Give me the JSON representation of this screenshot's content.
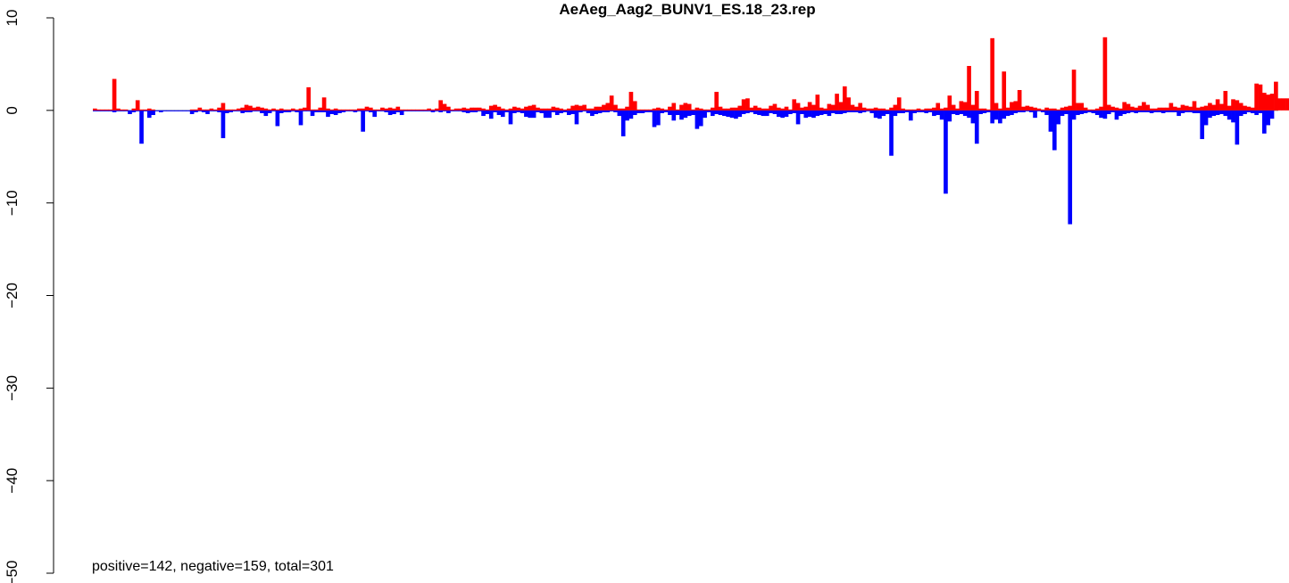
{
  "chart_data": {
    "type": "bar",
    "title": "AeAeg_Aag2_BUNV1_ES.18_23.rep",
    "xlabel": "",
    "ylabel": "",
    "ylim": [
      -50,
      10
    ],
    "y_ticks": [
      10,
      0,
      -10,
      -20,
      -30,
      -40,
      -50
    ],
    "y_tick_labels": [
      "10",
      "0",
      "−10",
      "−20",
      "−30",
      "−40",
      "−50"
    ],
    "grid": false,
    "legend": "none",
    "annotation": "positive=142, negative=159, total=301",
    "n_positions": 301,
    "series": [
      {
        "name": "positive",
        "color": "#ff0000",
        "values": [
          0.2,
          0.1,
          0.1,
          0.1,
          0.1,
          3.4,
          0.2,
          0.1,
          0.1,
          0,
          0.2,
          1.1,
          0.1,
          0.1,
          0.2,
          0.1,
          0,
          0,
          0,
          0,
          0,
          0,
          0,
          0,
          0,
          0.1,
          0.1,
          0.3,
          0.1,
          0.1,
          0.2,
          0.1,
          0.3,
          0.8,
          0.1,
          0.1,
          0.1,
          0.2,
          0.3,
          0.6,
          0.5,
          0.3,
          0.4,
          0.3,
          0.2,
          0.1,
          0.2,
          0.1,
          0.2,
          0.1,
          0.1,
          0.2,
          0.1,
          0.2,
          0.3,
          2.5,
          0.1,
          0.1,
          0.3,
          1.4,
          0.2,
          0.1,
          0.2,
          0.1,
          0.1,
          0.1,
          0.1,
          0.1,
          0.2,
          0.2,
          0.4,
          0.3,
          0.1,
          0.1,
          0.3,
          0.2,
          0.3,
          0.2,
          0.4,
          0.1,
          0.1,
          0.1,
          0.1,
          0.1,
          0.1,
          0.1,
          0.2,
          0.1,
          0.2,
          1.1,
          0.7,
          0.4,
          0.1,
          0.2,
          0.2,
          0.3,
          0.2,
          0.3,
          0.3,
          0.3,
          0.2,
          0.1,
          0.5,
          0.6,
          0.4,
          0.2,
          0.1,
          0.2,
          0.4,
          0.3,
          0.2,
          0.4,
          0.5,
          0.6,
          0.3,
          0.2,
          0.2,
          0.2,
          0.4,
          0.3,
          0.2,
          0.1,
          0.2,
          0.5,
          0.6,
          0.5,
          0.6,
          0.2,
          0.2,
          0.4,
          0.4,
          0.6,
          0.8,
          1.6,
          0.6,
          0.2,
          0.2,
          0.4,
          2.0,
          1.0,
          0.1,
          0.1,
          0.1,
          0.1,
          0.2,
          0.3,
          0.2,
          0.1,
          0.4,
          0.8,
          0.1,
          0.6,
          0.8,
          0.7,
          0.1,
          0.3,
          0.2,
          0.1,
          0.1,
          0.3,
          2.0,
          0.4,
          0.2,
          0.2,
          0.3,
          0.3,
          0.5,
          1.2,
          1.3,
          0.3,
          0.5,
          0.3,
          0.2,
          0.2,
          0.5,
          0.7,
          0.3,
          0.2,
          0.4,
          0.1,
          1.2,
          0.8,
          0.3,
          0.4,
          0.9,
          0.6,
          1.7,
          0.3,
          0.2,
          0.7,
          0.6,
          1.8,
          0.9,
          2.6,
          1.4,
          0.6,
          0.4,
          0.8,
          0.3,
          0.2,
          0.2,
          0.3,
          0.2,
          0.2,
          0.1,
          0.3,
          0.6,
          1.4,
          0.2,
          0.1,
          0.1,
          0.1,
          0.2,
          0.1,
          0.2,
          0.2,
          0.3,
          0.8,
          0.2,
          0.3,
          1.6,
          0.6,
          0.2,
          1.0,
          0.9,
          4.8,
          0.6,
          2.1,
          0.2,
          0.2,
          0.1,
          7.8,
          0.8,
          0.2,
          4.2,
          0.3,
          0.9,
          1.0,
          2.2,
          0.4,
          0.5,
          0.4,
          0.3,
          0.2,
          0.1,
          0.3,
          0.2,
          0.2,
          0.1,
          0.3,
          0.4,
          0.5,
          4.4,
          0.8,
          0.8,
          0.3,
          0.1,
          0.1,
          0.2,
          0.4,
          7.9,
          0.6,
          0.4,
          0.3,
          0.2,
          0.9,
          0.7,
          0.4,
          0.3,
          0.5,
          0.9,
          0.6,
          0.2,
          0.2,
          0.3,
          0.3,
          0.3,
          0.8,
          0.4,
          0.3,
          0.6,
          0.5,
          0.4,
          1.0,
          0.3,
          0.4,
          0.5,
          0.8,
          0.6,
          1.2,
          0.7,
          2.1,
          0.5,
          1.2,
          1.1,
          0.8,
          0.5,
          0.4,
          0.3,
          2.9,
          2.8,
          1.9,
          1.7,
          1.8,
          3.1,
          1.3,
          1.3,
          1.3,
          0.2,
          0.2,
          1.0,
          0.3,
          0.7,
          0.5,
          0.3,
          0.3,
          0.3
        ]
      },
      {
        "name": "negative",
        "color": "#0000ff",
        "values": [
          -0.1,
          -0.1,
          -0.1,
          -0.1,
          -0.1,
          -0.2,
          -0.1,
          -0.1,
          -0.1,
          -0.4,
          -0.2,
          -0.1,
          -3.6,
          -0.1,
          -0.8,
          -0.5,
          -0.1,
          -0.2,
          -0.1,
          -0.1,
          -0.1,
          -0.1,
          -0.1,
          -0.1,
          -0.1,
          -0.4,
          -0.2,
          -0.1,
          -0.2,
          -0.4,
          -0.1,
          -0.1,
          -0.2,
          -3.0,
          -0.3,
          -0.2,
          -0.1,
          -0.1,
          -0.3,
          -0.2,
          -0.2,
          -0.1,
          -0.1,
          -0.3,
          -0.6,
          -0.3,
          -0.1,
          -1.7,
          -0.3,
          -0.2,
          -0.2,
          -0.1,
          -0.2,
          -1.6,
          -0.1,
          -0.1,
          -0.6,
          -0.2,
          -0.2,
          -0.2,
          -0.7,
          -0.4,
          -0.5,
          -0.3,
          -0.2,
          -0.1,
          -0.1,
          -0.2,
          -0.1,
          -2.3,
          -0.1,
          -0.2,
          -0.7,
          -0.1,
          -0.1,
          -0.2,
          -0.5,
          -0.4,
          -0.2,
          -0.5,
          -0.1,
          -0.1,
          -0.1,
          -0.1,
          -0.1,
          -0.1,
          -0.1,
          -0.2,
          -0.1,
          -0.2,
          -0.1,
          -0.3,
          -0.1,
          -0.1,
          -0.1,
          -0.2,
          -0.3,
          -0.2,
          -0.2,
          -0.1,
          -0.6,
          -0.4,
          -0.9,
          -0.2,
          -0.5,
          -0.7,
          -0.2,
          -1.5,
          -0.3,
          -0.2,
          -0.3,
          -0.7,
          -0.8,
          -0.8,
          -0.2,
          -0.3,
          -0.8,
          -0.8,
          -0.2,
          -0.5,
          -0.3,
          -0.2,
          -0.5,
          -0.4,
          -1.5,
          -0.2,
          -0.1,
          -0.3,
          -0.6,
          -0.4,
          -0.3,
          -0.2,
          -0.2,
          -0.1,
          -0.2,
          -0.6,
          -2.8,
          -1.1,
          -0.9,
          -0.5,
          -0.3,
          -0.3,
          -0.2,
          -0.2,
          -1.8,
          -1.6,
          -0.3,
          -0.2,
          -0.5,
          -1.1,
          -0.5,
          -1.0,
          -0.8,
          -0.6,
          -0.5,
          -2.0,
          -1.7,
          -0.8,
          -0.2,
          -0.6,
          -0.4,
          -0.5,
          -0.6,
          -0.7,
          -0.8,
          -0.9,
          -0.7,
          -0.4,
          -0.3,
          -0.2,
          -0.4,
          -0.5,
          -0.6,
          -0.6,
          -0.3,
          -0.4,
          -0.7,
          -0.8,
          -0.7,
          -0.4,
          -0.3,
          -1.5,
          -0.4,
          -0.8,
          -0.7,
          -0.8,
          -0.6,
          -0.5,
          -0.4,
          -0.6,
          -0.3,
          -0.4,
          -0.4,
          -0.3,
          -0.2,
          -0.2,
          -0.2,
          -0.3,
          -0.2,
          -0.1,
          -0.3,
          -0.8,
          -0.9,
          -0.6,
          -0.4,
          -4.9,
          -0.6,
          -0.3,
          -0.3,
          -0.2,
          -1.1,
          -0.3,
          -0.2,
          -0.2,
          -0.3,
          -0.2,
          -0.6,
          -0.5,
          -1.0,
          -9.0,
          -1.2,
          -0.4,
          -0.5,
          -0.4,
          -0.6,
          -0.8,
          -1.4,
          -3.6,
          -0.4,
          -0.3,
          -0.2,
          -1.4,
          -1.0,
          -1.4,
          -0.9,
          -0.6,
          -0.5,
          -0.3,
          -0.2,
          -0.2,
          -0.1,
          -0.2,
          -0.8,
          -0.1,
          -0.2,
          -0.5,
          -2.3,
          -4.3,
          -1.5,
          -0.6,
          -0.4,
          -12.3,
          -1.0,
          -0.5,
          -0.4,
          -0.3,
          -0.2,
          -0.3,
          -0.5,
          -0.8,
          -0.9,
          -0.4,
          -0.2,
          -1.0,
          -0.6,
          -0.4,
          -0.3,
          -0.2,
          -0.3,
          -0.2,
          -0.2,
          -0.2,
          -0.3,
          -0.2,
          -0.2,
          -0.3,
          -0.2,
          -0.2,
          -0.2,
          -0.6,
          -0.3,
          -0.2,
          -0.2,
          -0.3,
          -0.3,
          -3.1,
          -1.6,
          -0.8,
          -0.6,
          -0.5,
          -0.4,
          -0.6,
          -1.0,
          -1.3,
          -3.7,
          -0.6,
          -0.4,
          -0.2,
          -0.3,
          -0.5,
          -0.3,
          -2.5,
          -1.6,
          -0.9
        ]
      }
    ]
  }
}
